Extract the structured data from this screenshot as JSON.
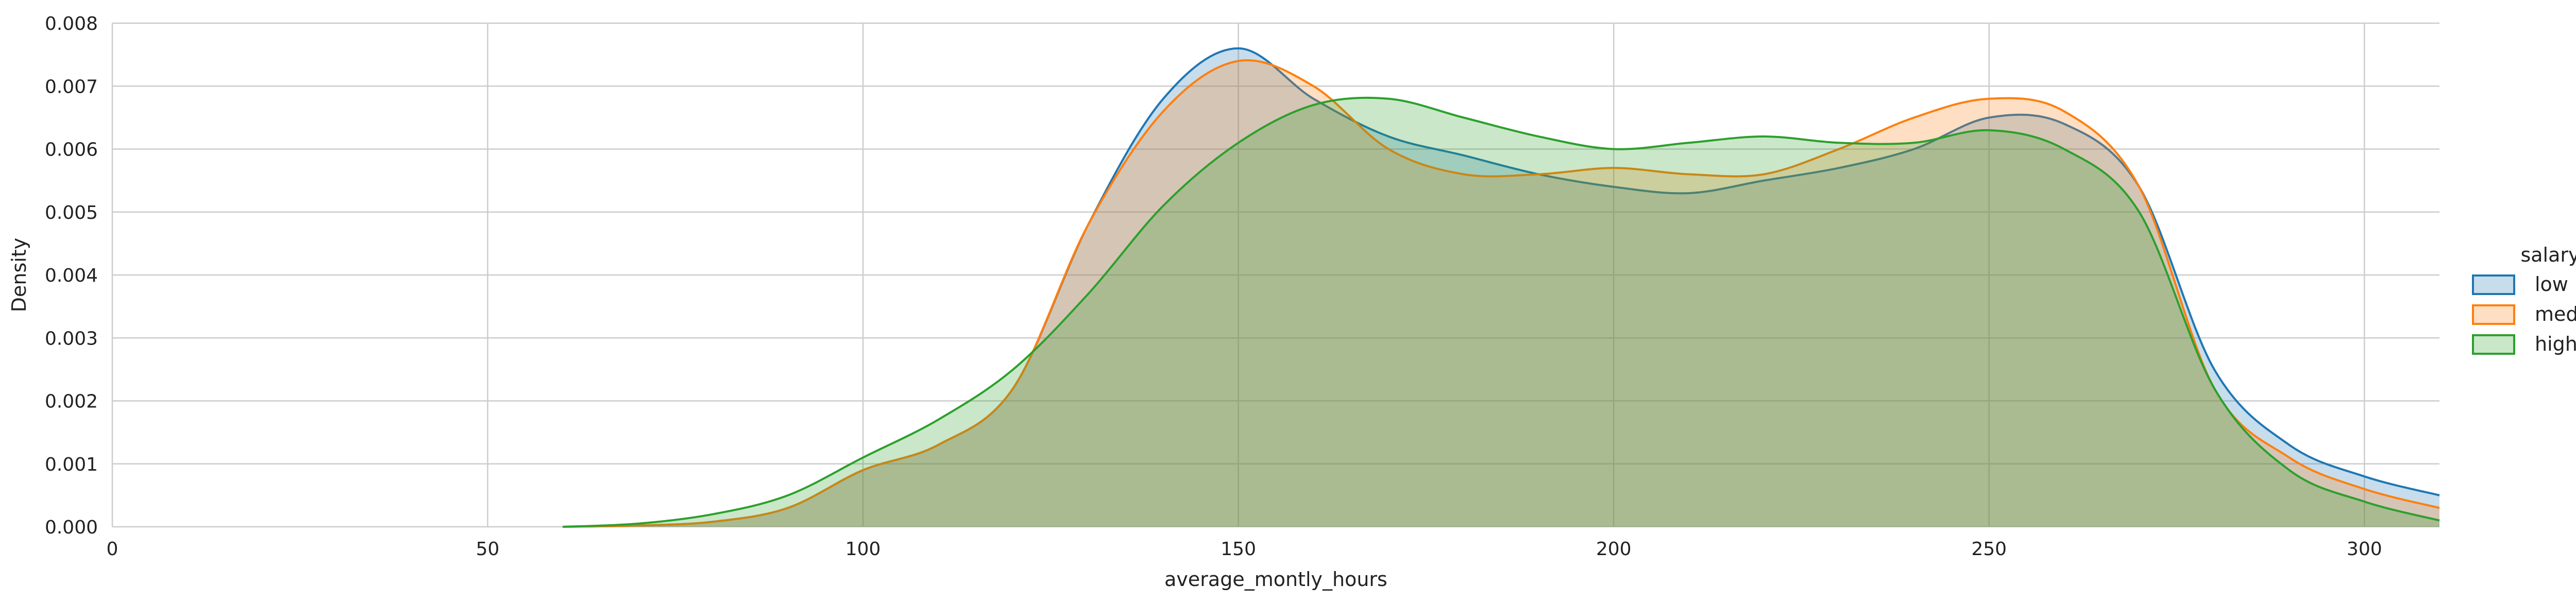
{
  "chart_data": {
    "type": "area",
    "title": "",
    "xlabel": "average_montly_hours",
    "ylabel": "Density",
    "xlim": [
      0,
      310
    ],
    "ylim": [
      0,
      0.008
    ],
    "xticks": [
      0,
      50,
      100,
      150,
      200,
      250,
      300
    ],
    "yticks": [
      0.0,
      0.001,
      0.002,
      0.003,
      0.004,
      0.005,
      0.006,
      0.007,
      0.008
    ],
    "ytick_labels": [
      "0.000",
      "0.001",
      "0.002",
      "0.003",
      "0.004",
      "0.005",
      "0.006",
      "0.007",
      "0.008"
    ],
    "grid": true,
    "legend": {
      "title": "salary",
      "placement": "right"
    },
    "series": [
      {
        "name": "low",
        "color": "#1f77b4",
        "x": [
          60,
          70,
          80,
          90,
          100,
          110,
          120,
          130,
          140,
          150,
          160,
          170,
          180,
          190,
          200,
          210,
          220,
          230,
          240,
          250,
          260,
          270,
          280,
          290,
          300,
          310
        ],
        "y": [
          0.0,
          2e-05,
          8e-05,
          0.0003,
          0.0009,
          0.0013,
          0.0022,
          0.0048,
          0.0068,
          0.0076,
          0.0068,
          0.0062,
          0.0059,
          0.0056,
          0.0054,
          0.0053,
          0.0055,
          0.0057,
          0.006,
          0.0065,
          0.0064,
          0.0054,
          0.0025,
          0.0013,
          0.0008,
          0.0005
        ]
      },
      {
        "name": "medium",
        "color": "#ff7f0e",
        "x": [
          60,
          70,
          80,
          90,
          100,
          110,
          120,
          130,
          140,
          150,
          160,
          170,
          180,
          190,
          200,
          210,
          220,
          230,
          240,
          250,
          260,
          270,
          280,
          290,
          300,
          310
        ],
        "y": [
          0.0,
          2e-05,
          8e-05,
          0.0003,
          0.0009,
          0.0013,
          0.0022,
          0.0048,
          0.0066,
          0.0074,
          0.007,
          0.006,
          0.0056,
          0.0056,
          0.0057,
          0.0056,
          0.0056,
          0.006,
          0.0065,
          0.0068,
          0.0066,
          0.0054,
          0.0022,
          0.0011,
          0.0006,
          0.0003
        ]
      },
      {
        "name": "high",
        "color": "#2ca02c",
        "x": [
          60,
          70,
          80,
          90,
          100,
          110,
          120,
          130,
          140,
          150,
          160,
          170,
          180,
          190,
          200,
          210,
          220,
          230,
          240,
          250,
          260,
          270,
          280,
          290,
          300,
          310
        ],
        "y": [
          0.0,
          5e-05,
          0.0002,
          0.0005,
          0.0011,
          0.0017,
          0.0025,
          0.0037,
          0.0051,
          0.0061,
          0.0067,
          0.0068,
          0.0065,
          0.0062,
          0.006,
          0.0061,
          0.0062,
          0.0061,
          0.0061,
          0.0063,
          0.006,
          0.005,
          0.0022,
          0.0009,
          0.0004,
          0.0001
        ]
      }
    ]
  }
}
